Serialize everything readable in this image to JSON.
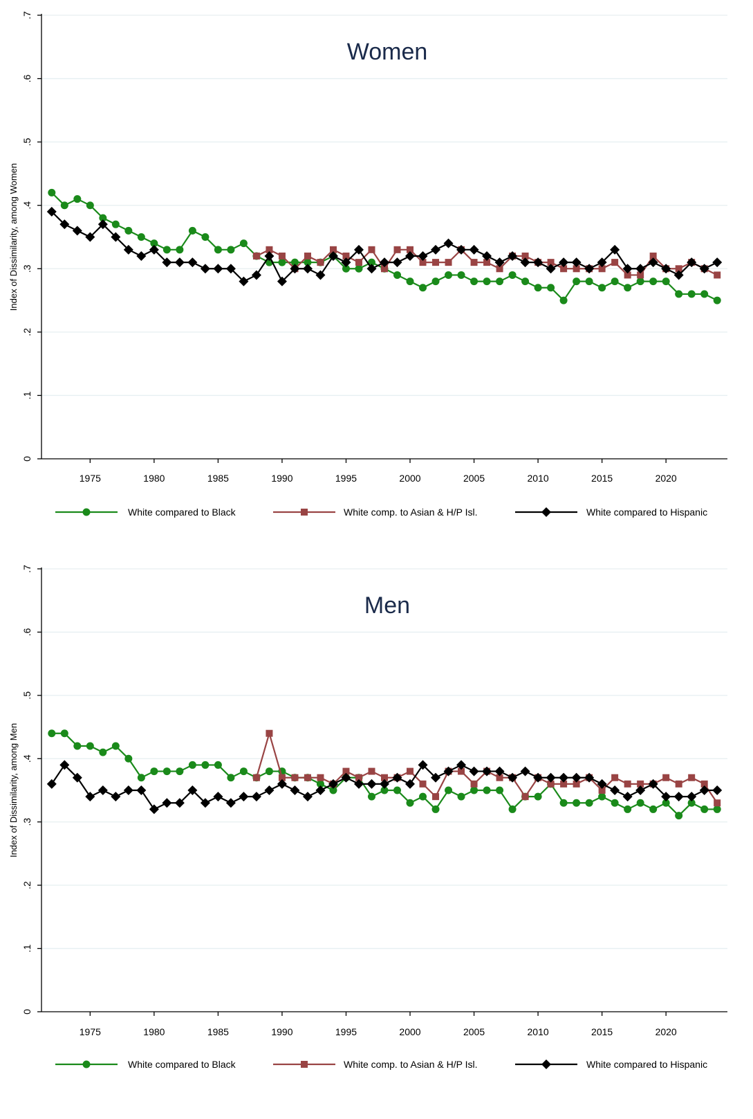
{
  "chart_data": [
    {
      "type": "line",
      "title": "Women",
      "ylabel": "Index of Dissimilarity, among Women",
      "xlabel": "",
      "xlim": [
        1971.2,
        2024.8
      ],
      "ylim": [
        0,
        0.7
      ],
      "x_ticks": [
        1975,
        1980,
        1985,
        1990,
        1995,
        2000,
        2005,
        2010,
        2015,
        2020
      ],
      "y_ticks": [
        0,
        0.1,
        0.2,
        0.3,
        0.4,
        0.5,
        0.6,
        0.7
      ],
      "y_tick_labels": [
        "0",
        ".1",
        ".2",
        ".3",
        ".4",
        ".5",
        ".6",
        ".7"
      ],
      "grid": true,
      "legend_position": "bottom",
      "series": [
        {
          "name": "White compared to Black",
          "color": "#1a8a1a",
          "marker": "circle",
          "x": [
            1972,
            1973,
            1974,
            1975,
            1976,
            1977,
            1978,
            1979,
            1980,
            1981,
            1982,
            1983,
            1984,
            1985,
            1986,
            1987,
            1988,
            1989,
            1990,
            1991,
            1992,
            1993,
            1994,
            1995,
            1996,
            1997,
            1998,
            1999,
            2000,
            2001,
            2002,
            2003,
            2004,
            2005,
            2006,
            2007,
            2008,
            2009,
            2010,
            2011,
            2012,
            2013,
            2014,
            2015,
            2016,
            2017,
            2018,
            2019,
            2020,
            2021,
            2022,
            2023,
            2024
          ],
          "values": [
            0.42,
            0.4,
            0.41,
            0.4,
            0.38,
            0.37,
            0.36,
            0.35,
            0.34,
            0.33,
            0.33,
            0.36,
            0.35,
            0.33,
            0.33,
            0.34,
            0.32,
            0.31,
            0.31,
            0.31,
            0.31,
            0.31,
            0.32,
            0.3,
            0.3,
            0.31,
            0.3,
            0.29,
            0.28,
            0.27,
            0.28,
            0.29,
            0.29,
            0.28,
            0.28,
            0.28,
            0.29,
            0.28,
            0.27,
            0.27,
            0.25,
            0.28,
            0.28,
            0.27,
            0.28,
            0.27,
            0.28,
            0.28,
            0.28,
            0.26,
            0.26,
            0.26,
            0.25
          ]
        },
        {
          "name": "White comp. to Asian & H/P Isl.",
          "color": "#994444",
          "marker": "square",
          "x": [
            1988,
            1989,
            1990,
            1991,
            1992,
            1993,
            1994,
            1995,
            1996,
            1997,
            1998,
            1999,
            2000,
            2001,
            2002,
            2003,
            2004,
            2005,
            2006,
            2007,
            2008,
            2009,
            2010,
            2011,
            2012,
            2013,
            2014,
            2015,
            2016,
            2017,
            2018,
            2019,
            2020,
            2021,
            2022,
            2023,
            2024
          ],
          "values": [
            0.32,
            0.33,
            0.32,
            0.3,
            0.32,
            0.31,
            0.33,
            0.32,
            0.31,
            0.33,
            0.3,
            0.33,
            0.33,
            0.31,
            0.31,
            0.31,
            0.33,
            0.31,
            0.31,
            0.3,
            0.32,
            0.32,
            0.31,
            0.31,
            0.3,
            0.3,
            0.3,
            0.3,
            0.31,
            0.29,
            0.29,
            0.32,
            0.3,
            0.3,
            0.31,
            0.3,
            0.29
          ]
        },
        {
          "name": "White compared to Hispanic",
          "color": "#000000",
          "marker": "diamond",
          "x": [
            1972,
            1973,
            1974,
            1975,
            1976,
            1977,
            1978,
            1979,
            1980,
            1981,
            1982,
            1983,
            1984,
            1985,
            1986,
            1987,
            1988,
            1989,
            1990,
            1991,
            1992,
            1993,
            1994,
            1995,
            1996,
            1997,
            1998,
            1999,
            2000,
            2001,
            2002,
            2003,
            2004,
            2005,
            2006,
            2007,
            2008,
            2009,
            2010,
            2011,
            2012,
            2013,
            2014,
            2015,
            2016,
            2017,
            2018,
            2019,
            2020,
            2021,
            2022,
            2023,
            2024
          ],
          "values": [
            0.39,
            0.37,
            0.36,
            0.35,
            0.37,
            0.35,
            0.33,
            0.32,
            0.33,
            0.31,
            0.31,
            0.31,
            0.3,
            0.3,
            0.3,
            0.28,
            0.29,
            0.32,
            0.28,
            0.3,
            0.3,
            0.29,
            0.32,
            0.31,
            0.33,
            0.3,
            0.31,
            0.31,
            0.32,
            0.32,
            0.33,
            0.34,
            0.33,
            0.33,
            0.32,
            0.31,
            0.32,
            0.31,
            0.31,
            0.3,
            0.31,
            0.31,
            0.3,
            0.31,
            0.33,
            0.3,
            0.3,
            0.31,
            0.3,
            0.29,
            0.31,
            0.3,
            0.31
          ]
        }
      ]
    },
    {
      "type": "line",
      "title": "Men",
      "ylabel": "Index of Dissimilarity, among Men",
      "xlabel": "",
      "xlim": [
        1971.2,
        2024.8
      ],
      "ylim": [
        0,
        0.7
      ],
      "x_ticks": [
        1975,
        1980,
        1985,
        1990,
        1995,
        2000,
        2005,
        2010,
        2015,
        2020
      ],
      "y_ticks": [
        0,
        0.1,
        0.2,
        0.3,
        0.4,
        0.5,
        0.6,
        0.7
      ],
      "y_tick_labels": [
        "0",
        ".1",
        ".2",
        ".3",
        ".4",
        ".5",
        ".6",
        ".7"
      ],
      "grid": true,
      "legend_position": "bottom",
      "series": [
        {
          "name": "White compared to Black",
          "color": "#1a8a1a",
          "marker": "circle",
          "x": [
            1972,
            1973,
            1974,
            1975,
            1976,
            1977,
            1978,
            1979,
            1980,
            1981,
            1982,
            1983,
            1984,
            1985,
            1986,
            1987,
            1988,
            1989,
            1990,
            1991,
            1992,
            1993,
            1994,
            1995,
            1996,
            1997,
            1998,
            1999,
            2000,
            2001,
            2002,
            2003,
            2004,
            2005,
            2006,
            2007,
            2008,
            2009,
            2010,
            2011,
            2012,
            2013,
            2014,
            2015,
            2016,
            2017,
            2018,
            2019,
            2020,
            2021,
            2022,
            2023,
            2024
          ],
          "values": [
            0.44,
            0.44,
            0.42,
            0.42,
            0.41,
            0.42,
            0.4,
            0.37,
            0.38,
            0.38,
            0.38,
            0.39,
            0.39,
            0.39,
            0.37,
            0.38,
            0.37,
            0.38,
            0.38,
            0.37,
            0.37,
            0.36,
            0.35,
            0.37,
            0.37,
            0.34,
            0.35,
            0.35,
            0.33,
            0.34,
            0.32,
            0.35,
            0.34,
            0.35,
            0.35,
            0.35,
            0.32,
            0.34,
            0.34,
            0.36,
            0.33,
            0.33,
            0.33,
            0.34,
            0.33,
            0.32,
            0.33,
            0.32,
            0.33,
            0.31,
            0.33,
            0.32,
            0.32
          ]
        },
        {
          "name": "White comp. to Asian & H/P Isl.",
          "color": "#994444",
          "marker": "square",
          "x": [
            1988,
            1989,
            1990,
            1991,
            1992,
            1993,
            1994,
            1995,
            1996,
            1997,
            1998,
            1999,
            2000,
            2001,
            2002,
            2003,
            2004,
            2005,
            2006,
            2007,
            2008,
            2009,
            2010,
            2011,
            2012,
            2013,
            2014,
            2015,
            2016,
            2017,
            2018,
            2019,
            2020,
            2021,
            2022,
            2023,
            2024
          ],
          "values": [
            0.37,
            0.44,
            0.37,
            0.37,
            0.37,
            0.37,
            0.36,
            0.38,
            0.37,
            0.38,
            0.37,
            0.37,
            0.38,
            0.36,
            0.34,
            0.38,
            0.38,
            0.36,
            0.38,
            0.37,
            0.37,
            0.34,
            0.37,
            0.36,
            0.36,
            0.36,
            0.37,
            0.35,
            0.37,
            0.36,
            0.36,
            0.36,
            0.37,
            0.36,
            0.37,
            0.36,
            0.33
          ]
        },
        {
          "name": "White compared to Hispanic",
          "color": "#000000",
          "marker": "diamond",
          "x": [
            1972,
            1973,
            1974,
            1975,
            1976,
            1977,
            1978,
            1979,
            1980,
            1981,
            1982,
            1983,
            1984,
            1985,
            1986,
            1987,
            1988,
            1989,
            1990,
            1991,
            1992,
            1993,
            1994,
            1995,
            1996,
            1997,
            1998,
            1999,
            2000,
            2001,
            2002,
            2003,
            2004,
            2005,
            2006,
            2007,
            2008,
            2009,
            2010,
            2011,
            2012,
            2013,
            2014,
            2015,
            2016,
            2017,
            2018,
            2019,
            2020,
            2021,
            2022,
            2023,
            2024
          ],
          "values": [
            0.36,
            0.39,
            0.37,
            0.34,
            0.35,
            0.34,
            0.35,
            0.35,
            0.32,
            0.33,
            0.33,
            0.35,
            0.33,
            0.34,
            0.33,
            0.34,
            0.34,
            0.35,
            0.36,
            0.35,
            0.34,
            0.35,
            0.36,
            0.37,
            0.36,
            0.36,
            0.36,
            0.37,
            0.36,
            0.39,
            0.37,
            0.38,
            0.39,
            0.38,
            0.38,
            0.38,
            0.37,
            0.38,
            0.37,
            0.37,
            0.37,
            0.37,
            0.37,
            0.36,
            0.35,
            0.34,
            0.35,
            0.36,
            0.34,
            0.34,
            0.34,
            0.35,
            0.35
          ]
        }
      ]
    }
  ]
}
